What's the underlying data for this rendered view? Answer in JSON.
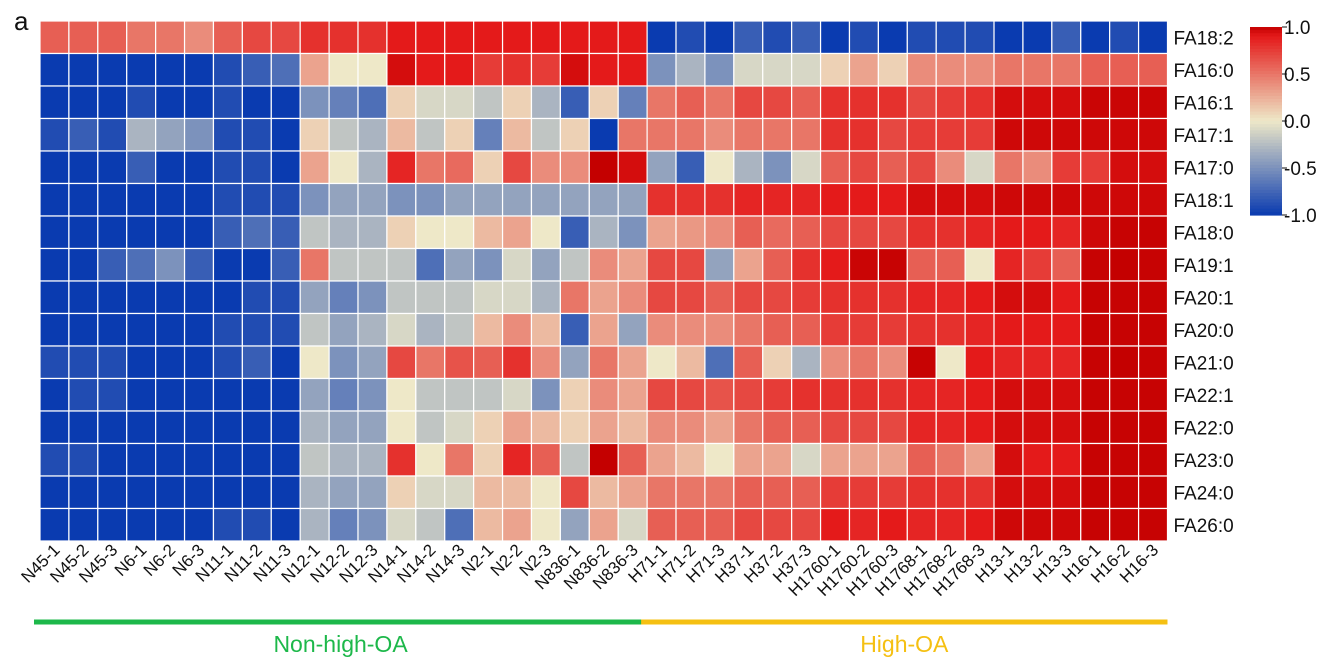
{
  "panel_label": "a",
  "chart_data": {
    "type": "heatmap",
    "title": "",
    "xlabel": "",
    "ylabel": "",
    "rows": [
      "FA18:2",
      "FA16:0",
      "FA16:1",
      "FA17:1",
      "FA17:0",
      "FA18:1",
      "FA18:0",
      "FA19:1",
      "FA20:1",
      "FA20:0",
      "FA21:0",
      "FA22:1",
      "FA22:0",
      "FA23:0",
      "FA24:0",
      "FA26:0"
    ],
    "columns": [
      "N45-1",
      "N45-2",
      "N45-3",
      "N6-1",
      "N6-2",
      "N6-3",
      "N11-1",
      "N11-2",
      "N11-3",
      "N12-1",
      "N12-2",
      "N12-3",
      "N14-1",
      "N14-2",
      "N14-3",
      "N2-1",
      "N2-2",
      "N2-3",
      "N836-1",
      "N836-2",
      "N836-3",
      "H71-1",
      "H71-2",
      "H71-3",
      "H37-1",
      "H37-2",
      "H37-3",
      "H1760-1",
      "H1760-2",
      "H1760-3",
      "H1768-1",
      "H1768-2",
      "H1768-3",
      "H13-1",
      "H13-2",
      "H13-3",
      "H16-1",
      "H16-2",
      "H16-3"
    ],
    "values": [
      [
        0.6,
        0.6,
        0.6,
        0.5,
        0.5,
        0.4,
        0.6,
        0.7,
        0.7,
        0.8,
        0.8,
        0.8,
        0.9,
        0.9,
        0.9,
        0.9,
        0.9,
        0.9,
        0.9,
        0.9,
        0.9,
        -1.0,
        -0.9,
        -1.0,
        -0.8,
        -0.9,
        -0.8,
        -1.0,
        -0.9,
        -1.0,
        -0.9,
        -0.9,
        -0.9,
        -1.0,
        -1.0,
        -0.8,
        -1.0,
        -0.9,
        -1.0
      ],
      [
        -1.0,
        -1.0,
        -1.0,
        -1.0,
        -1.0,
        -1.0,
        -0.9,
        -0.8,
        -0.7,
        0.3,
        0.0,
        0.0,
        0.95,
        0.9,
        0.9,
        0.75,
        0.8,
        0.75,
        0.95,
        0.9,
        0.9,
        -0.5,
        -0.3,
        -0.5,
        -0.1,
        -0.1,
        -0.1,
        0.1,
        0.3,
        0.1,
        0.4,
        0.4,
        0.4,
        0.5,
        0.5,
        0.5,
        0.6,
        0.6,
        0.6
      ],
      [
        -1.0,
        -1.0,
        -1.0,
        -0.9,
        -1.0,
        -1.0,
        -0.9,
        -1.0,
        -1.0,
        -0.5,
        -0.6,
        -0.7,
        0.1,
        -0.1,
        -0.1,
        -0.2,
        0.1,
        -0.3,
        -0.8,
        0.1,
        -0.6,
        0.5,
        0.6,
        0.5,
        0.7,
        0.7,
        0.6,
        0.8,
        0.8,
        0.8,
        0.7,
        0.75,
        0.8,
        0.95,
        0.95,
        0.95,
        0.98,
        0.98,
        0.98
      ],
      [
        -0.9,
        -0.8,
        -0.9,
        -0.3,
        -0.4,
        -0.5,
        -0.9,
        -0.9,
        -1.0,
        0.1,
        -0.2,
        -0.3,
        0.2,
        -0.2,
        0.1,
        -0.6,
        0.2,
        -0.2,
        0.1,
        -1.0,
        0.5,
        0.5,
        0.5,
        0.4,
        0.5,
        0.5,
        0.5,
        0.8,
        0.8,
        0.7,
        0.75,
        0.75,
        0.75,
        0.97,
        0.97,
        0.97,
        0.97,
        0.97,
        0.97
      ],
      [
        -1.0,
        -1.0,
        -1.0,
        -0.8,
        -1.0,
        -1.0,
        -0.9,
        -0.9,
        -1.0,
        0.3,
        0.0,
        -0.3,
        0.85,
        0.5,
        0.55,
        0.1,
        0.7,
        0.4,
        0.4,
        1.0,
        0.95,
        -0.4,
        -0.8,
        0.0,
        -0.3,
        -0.5,
        -0.1,
        0.6,
        0.7,
        0.6,
        0.7,
        0.4,
        -0.1,
        0.5,
        0.4,
        0.75,
        0.75,
        0.95,
        0.95
      ],
      [
        -1.0,
        -1.0,
        -1.0,
        -1.0,
        -1.0,
        -1.0,
        -0.9,
        -0.9,
        -0.9,
        -0.5,
        -0.4,
        -0.4,
        -0.5,
        -0.5,
        -0.4,
        -0.4,
        -0.4,
        -0.4,
        -0.4,
        -0.4,
        -0.4,
        0.8,
        0.8,
        0.8,
        0.85,
        0.85,
        0.85,
        0.9,
        0.9,
        0.9,
        0.95,
        0.95,
        0.95,
        0.97,
        0.97,
        0.97,
        0.97,
        0.97,
        0.97
      ],
      [
        -1.0,
        -1.0,
        -1.0,
        -1.0,
        -1.0,
        -1.0,
        -0.8,
        -0.7,
        -0.8,
        -0.2,
        -0.3,
        -0.3,
        0.1,
        0.0,
        0.0,
        0.2,
        0.3,
        0.0,
        -0.8,
        -0.3,
        -0.5,
        0.3,
        0.35,
        0.4,
        0.6,
        0.55,
        0.6,
        0.7,
        0.7,
        0.7,
        0.8,
        0.8,
        0.85,
        0.9,
        0.9,
        0.85,
        0.97,
        0.99,
        0.99
      ],
      [
        -1.0,
        -1.0,
        -0.8,
        -0.7,
        -0.5,
        -0.8,
        -1.0,
        -1.0,
        -0.8,
        0.5,
        -0.2,
        -0.2,
        -0.2,
        -0.7,
        -0.4,
        -0.5,
        -0.1,
        -0.4,
        -0.2,
        0.4,
        0.3,
        0.7,
        0.7,
        -0.4,
        0.3,
        0.6,
        0.8,
        0.9,
        0.98,
        0.99,
        0.6,
        0.6,
        0.0,
        0.85,
        0.75,
        0.6,
        0.99,
        1.0,
        0.99
      ],
      [
        -1.0,
        -1.0,
        -1.0,
        -1.0,
        -1.0,
        -1.0,
        -1.0,
        -0.9,
        -0.9,
        -0.4,
        -0.6,
        -0.5,
        -0.2,
        -0.2,
        -0.2,
        -0.1,
        -0.1,
        -0.3,
        0.5,
        0.3,
        0.4,
        0.7,
        0.7,
        0.6,
        0.7,
        0.7,
        0.75,
        0.8,
        0.8,
        0.8,
        0.85,
        0.85,
        0.9,
        0.95,
        0.95,
        0.9,
        0.99,
        0.99,
        0.99
      ],
      [
        -1.0,
        -1.0,
        -1.0,
        -1.0,
        -1.0,
        -1.0,
        -0.9,
        -0.9,
        -0.9,
        -0.2,
        -0.4,
        -0.3,
        -0.1,
        -0.3,
        -0.2,
        0.2,
        0.4,
        0.2,
        -0.8,
        0.3,
        -0.4,
        0.4,
        0.4,
        0.4,
        0.5,
        0.6,
        0.6,
        0.75,
        0.75,
        0.75,
        0.8,
        0.8,
        0.85,
        0.9,
        0.9,
        0.9,
        0.99,
        0.99,
        0.99
      ],
      [
        -0.9,
        -0.9,
        -0.9,
        -1.0,
        -1.0,
        -1.0,
        -0.9,
        -0.8,
        -1.0,
        0.0,
        -0.5,
        -0.4,
        0.7,
        0.5,
        0.65,
        0.6,
        0.8,
        0.4,
        -0.4,
        0.5,
        0.3,
        0.0,
        0.2,
        -0.7,
        0.6,
        0.1,
        -0.3,
        0.4,
        0.5,
        0.4,
        0.99,
        0.0,
        0.9,
        0.85,
        0.85,
        0.85,
        0.99,
        1.0,
        0.99
      ],
      [
        -1.0,
        -0.9,
        -0.9,
        -1.0,
        -1.0,
        -1.0,
        -1.0,
        -1.0,
        -1.0,
        -0.4,
        -0.6,
        -0.5,
        0.0,
        -0.2,
        -0.2,
        -0.2,
        -0.1,
        -0.5,
        0.1,
        0.4,
        0.3,
        0.7,
        0.7,
        0.65,
        0.7,
        0.75,
        0.8,
        0.8,
        0.8,
        0.8,
        0.85,
        0.85,
        0.9,
        0.95,
        0.95,
        0.95,
        0.99,
        0.99,
        0.99
      ],
      [
        -1.0,
        -1.0,
        -1.0,
        -1.0,
        -1.0,
        -1.0,
        -1.0,
        -1.0,
        -1.0,
        -0.3,
        -0.4,
        -0.4,
        0.0,
        -0.2,
        -0.1,
        0.1,
        0.3,
        0.2,
        0.1,
        0.3,
        0.2,
        0.4,
        0.4,
        0.3,
        0.5,
        0.6,
        0.6,
        0.7,
        0.7,
        0.7,
        0.85,
        0.85,
        0.9,
        0.95,
        0.95,
        0.95,
        0.99,
        0.99,
        0.99
      ],
      [
        -0.9,
        -0.9,
        -1.0,
        -1.0,
        -1.0,
        -1.0,
        -1.0,
        -1.0,
        -1.0,
        -0.2,
        -0.3,
        -0.3,
        0.8,
        0.0,
        0.5,
        0.1,
        0.85,
        0.6,
        -0.2,
        1.0,
        0.6,
        0.3,
        0.2,
        0.0,
        0.3,
        0.3,
        -0.1,
        0.3,
        0.3,
        0.3,
        0.6,
        0.5,
        0.3,
        0.95,
        0.9,
        0.9,
        0.99,
        0.99,
        0.99
      ],
      [
        -1.0,
        -1.0,
        -1.0,
        -1.0,
        -1.0,
        -1.0,
        -1.0,
        -1.0,
        -1.0,
        -0.3,
        -0.4,
        -0.4,
        0.1,
        -0.1,
        -0.1,
        0.2,
        0.2,
        0.0,
        0.7,
        0.2,
        0.3,
        0.5,
        0.5,
        0.5,
        0.6,
        0.6,
        0.6,
        0.75,
        0.75,
        0.75,
        0.8,
        0.8,
        0.8,
        0.95,
        0.95,
        0.95,
        0.99,
        0.99,
        0.99
      ],
      [
        -1.0,
        -1.0,
        -1.0,
        -1.0,
        -1.0,
        -1.0,
        -0.9,
        -0.9,
        -1.0,
        -0.3,
        -0.6,
        -0.5,
        -0.1,
        -0.2,
        -0.7,
        0.2,
        0.3,
        0.0,
        -0.4,
        0.3,
        -0.1,
        0.6,
        0.6,
        0.6,
        0.7,
        0.7,
        0.7,
        0.9,
        0.85,
        0.9,
        0.85,
        0.85,
        0.9,
        0.97,
        0.97,
        0.97,
        0.99,
        0.99,
        0.99
      ]
    ],
    "colorbar": {
      "min": -1.0,
      "max": 1.0,
      "ticks": [
        "1.0",
        "0.5",
        "0.0",
        "-0.5",
        "-1.0"
      ]
    },
    "colors": {
      "low": "#0a3bb0",
      "mid": "#eee8c8",
      "high": "#e41a1a",
      "extreme": "#c40000"
    },
    "groups": [
      {
        "name": "Non-high-OA",
        "start_col": 0,
        "end_col": 20,
        "color": "#1db84a"
      },
      {
        "name": "High-OA",
        "start_col": 21,
        "end_col": 38,
        "color": "#f5c012"
      }
    ]
  }
}
